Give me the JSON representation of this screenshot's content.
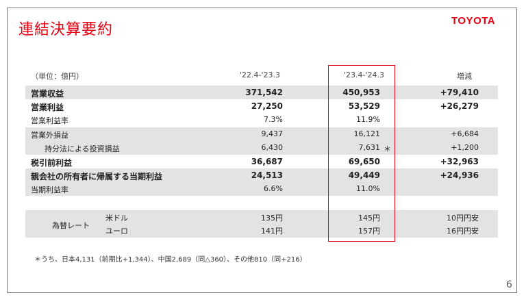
{
  "slide": {
    "title": "連結決算要約",
    "logo": "TOYOTA",
    "page_number": "6"
  },
  "table": {
    "unit": "（単位：億円）",
    "col_prev": "'22.4-'23.3",
    "col_curr": "'23.4-'24.3",
    "col_diff": "増減",
    "rows": [
      {
        "label": "営業収益",
        "prev": "371,542",
        "curr": "450,953",
        "diff": "+79,410"
      },
      {
        "label": "営業利益",
        "prev": "27,250",
        "curr": "53,529",
        "diff": "+26,279"
      },
      {
        "label": "営業利益率",
        "prev": "7.3%",
        "curr": "11.9%",
        "diff": ""
      },
      {
        "label": "営業外損益",
        "prev": "9,437",
        "curr": "16,121",
        "diff": "+6,684"
      },
      {
        "label": "持分法による投資損益",
        "prev": "6,430",
        "curr": "7,631",
        "mark": "＊",
        "diff": "+1,200"
      },
      {
        "label": "税引前利益",
        "prev": "36,687",
        "curr": "69,650",
        "diff": "+32,963"
      },
      {
        "label": "親会社の所有者に帰属する当期利益",
        "prev": "24,513",
        "curr": "49,449",
        "diff": "+24,936"
      },
      {
        "label": "当期利益率",
        "prev": "6.6%",
        "curr": "11.0%",
        "diff": ""
      }
    ],
    "fx": {
      "label": "為替レート",
      "usd_label": "米ドル",
      "usd_prev": "135円",
      "usd_curr": "145円",
      "usd_diff": "10円円安",
      "eur_label": "ユーロ",
      "eur_prev": "141円",
      "eur_curr": "157円",
      "eur_diff": "16円円安"
    }
  },
  "footnote": "＊うち、日本4,131（前期比+1,344）、中国2,689（同△360）、その他810（同+216）",
  "colors": {
    "accent": "#e50012",
    "shade": "#e3e3e3"
  }
}
